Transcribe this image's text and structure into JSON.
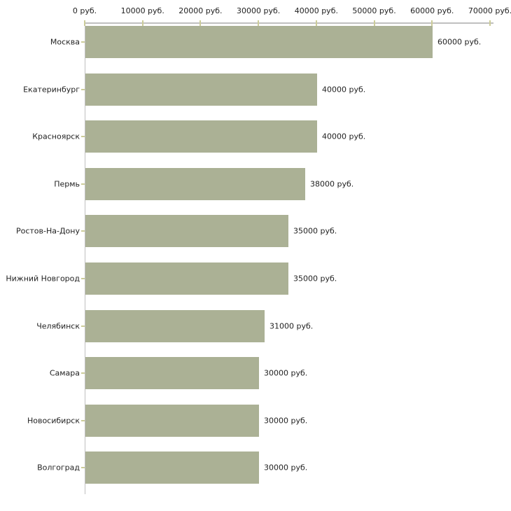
{
  "chart_data": {
    "type": "bar",
    "orientation": "horizontal",
    "title": "",
    "xlabel": "",
    "ylabel": "",
    "unit": "руб.",
    "categories": [
      "Москва",
      "Екатеринбург",
      "Красноярск",
      "Пермь",
      "Ростов-На-Дону",
      "Нижний Новгород",
      "Челябинск",
      "Самара",
      "Новосибирск",
      "Волгоград"
    ],
    "values": [
      60000,
      40000,
      40000,
      38000,
      35000,
      35000,
      31000,
      30000,
      30000,
      30000
    ],
    "value_labels": [
      "60000 руб.",
      "40000 руб.",
      "40000 руб.",
      "38000 руб.",
      "35000 руб.",
      "35000 руб.",
      "31000 руб.",
      "30000 руб.",
      "30000 руб.",
      "30000 руб."
    ],
    "xlim": [
      0,
      70000
    ],
    "x_tick_values": [
      0,
      10000,
      20000,
      30000,
      40000,
      50000,
      60000,
      70000
    ],
    "x_tick_labels": [
      "0 руб.",
      "10000 руб.",
      "20000 руб.",
      "30000 руб.",
      "40000 руб.",
      "50000 руб.",
      "60000 руб.",
      "70000 руб."
    ],
    "x_axis_position": "top",
    "grid": false,
    "legend": false,
    "colors": {
      "bar_fill": "#abb195",
      "tick_mark": "#cccc99",
      "axis_line": "#c0c0c0",
      "text": "#222222",
      "background": "#ffffff"
    }
  }
}
